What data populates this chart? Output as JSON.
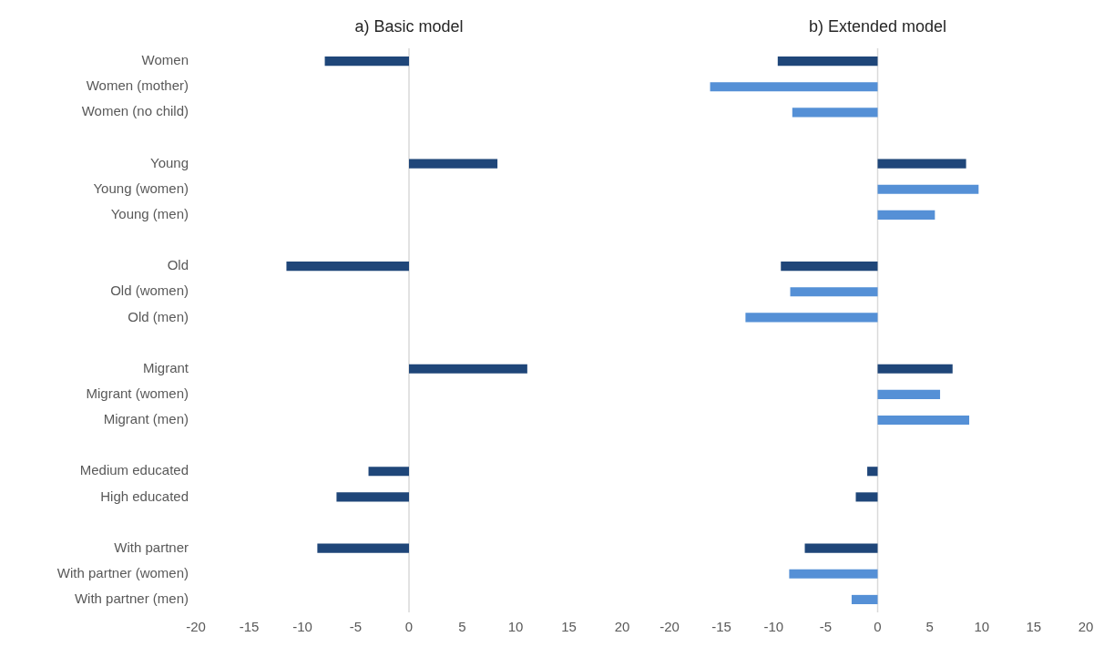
{
  "chart_data": [
    {
      "type": "bar",
      "title": "a) Basic model",
      "orientation": "horizontal",
      "categories": [
        "Women",
        "Women (mother)",
        "Women (no child)",
        null,
        "Young",
        "Young (women)",
        "Young (men)",
        null,
        "Old",
        "Old (women)",
        "Old (men)",
        null,
        "Migrant",
        "Migrant (women)",
        "Migrant (men)",
        null,
        "Medium educated",
        "High educated",
        null,
        "With partner",
        "With partner (women)",
        "With partner (men)"
      ],
      "values": [
        -7.9,
        null,
        null,
        null,
        8.3,
        null,
        null,
        null,
        -11.5,
        null,
        null,
        null,
        11.1,
        null,
        null,
        null,
        -3.8,
        -6.8,
        null,
        -8.6,
        null,
        null
      ],
      "color": "#1f4679",
      "xlim": [
        -20,
        20
      ],
      "xticks": [
        -20,
        -15,
        -10,
        -5,
        0,
        5,
        10,
        15,
        20
      ],
      "legend": false
    },
    {
      "type": "bar",
      "title": "b) Extended model",
      "orientation": "horizontal",
      "categories": [
        null,
        null,
        null,
        null,
        null,
        null,
        null,
        null,
        null,
        null,
        null,
        null,
        null,
        null,
        null,
        null,
        null,
        null,
        null,
        null,
        null,
        null
      ],
      "values": [
        -9.6,
        -16.1,
        -8.2,
        null,
        8.5,
        9.7,
        5.5,
        null,
        -9.3,
        -8.4,
        -12.7,
        null,
        7.2,
        6.0,
        8.8,
        null,
        -1.0,
        -2.1,
        null,
        -7.0,
        -8.5,
        -2.5
      ],
      "colors": [
        "#1f4679",
        "#5590d6",
        "#5590d6",
        null,
        "#1f4679",
        "#5590d6",
        "#5590d6",
        null,
        "#1f4679",
        "#5590d6",
        "#5590d6",
        null,
        "#1f4679",
        "#5590d6",
        "#5590d6",
        null,
        "#1f4679",
        "#1f4679",
        null,
        "#1f4679",
        "#5590d6",
        "#5590d6"
      ],
      "xlim": [
        -20,
        20
      ],
      "xticks": [
        -20,
        -15,
        -10,
        -5,
        0,
        5,
        10,
        15,
        20
      ],
      "legend": false,
      "tick_labels": "x"
    }
  ]
}
